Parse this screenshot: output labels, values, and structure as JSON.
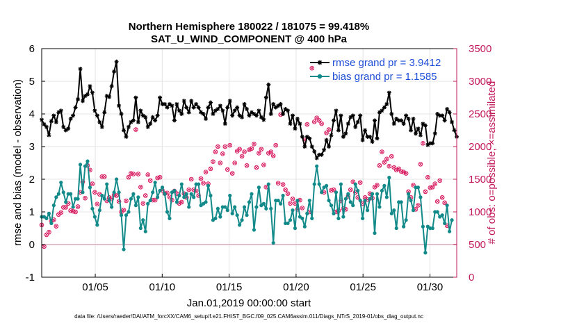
{
  "chart_data": {
    "type": "line",
    "title": "Northern Hemisphere 180022 / 181075 = 99.418%",
    "subtitle": "SAT_U_WIND_COMPONENT @ 400 hPa",
    "xlabel": "Jan.01,2019 00:00:00 start",
    "ylabel": "rmse and bias (model - observation)",
    "y2label": "# of obs: o=possible; ×=assimilated",
    "footer": "data file: /Users/raeder/DAI/ATM_forcXX/CAM6_setup/f.e21.FHIST_BGC.f09_025.CAM6assim.011/Diags_NTrS_2019-01/obs_diag_output.nc",
    "xlim": [
      1,
      32
    ],
    "ylim": [
      -1,
      6
    ],
    "y2lim": [
      0,
      3500
    ],
    "grid": true,
    "legend_position": "top-right",
    "x_ticks": [
      {
        "value": 5,
        "label": "01/05"
      },
      {
        "value": 10,
        "label": "01/10"
      },
      {
        "value": 15,
        "label": "01/15"
      },
      {
        "value": 20,
        "label": "01/20"
      },
      {
        "value": 25,
        "label": "01/25"
      },
      {
        "value": 30,
        "label": "01/30"
      }
    ],
    "y_ticks": [
      "-1",
      "0",
      "1",
      "2",
      "3",
      "4",
      "5",
      "6"
    ],
    "y2_ticks": [
      "0",
      "500",
      "1000",
      "1500",
      "2000",
      "2500",
      "3000",
      "3500"
    ],
    "reference_line": {
      "y": 0,
      "color": "#d8a8b8"
    },
    "colors": {
      "rmse": "#000000",
      "bias": "#138a8a",
      "obs": "#d81b60",
      "legend_text": "#1f4fd8",
      "right_axis": "#c2185b"
    },
    "series": [
      {
        "name": "rmse grand pr = 3.9412",
        "axis": "left",
        "marker": "star",
        "values": [
          3.82,
          3.68,
          3.6,
          3.35,
          3.78,
          3.95,
          3.75,
          4.05,
          4.1,
          3.6,
          3.5,
          3.55,
          3.85,
          3.95,
          4.2,
          4.45,
          5.38,
          4.4,
          4.55,
          4.6,
          4.85,
          4.65,
          4.1,
          3.95,
          3.75,
          3.6,
          4.05,
          4.55,
          4.52,
          4.85,
          5.3,
          5.6,
          4.25,
          4.0,
          3.5,
          3.3,
          3.6,
          3.75,
          3.8,
          4.5,
          3.75,
          4.1,
          3.95,
          3.9,
          3.6,
          3.7,
          3.9,
          3.8,
          3.95,
          4.5,
          4.3,
          4.3,
          4.2,
          4.3,
          4.25,
          3.8,
          4.3,
          4.1,
          4.0,
          4.4,
          4.2,
          4.05,
          4.4,
          4.2,
          4.3,
          4.2,
          4.05,
          4.0,
          3.85,
          4.2,
          4.35,
          4.0,
          4.1,
          4.15,
          4.25,
          4.1,
          3.7,
          4.2,
          4.4,
          3.95,
          4.1,
          4.2,
          3.95,
          3.9,
          4.3,
          4.15,
          3.95,
          4.05,
          4.0,
          3.95,
          4.1,
          3.9,
          3.82,
          4.5,
          4.9,
          4.0,
          4.3,
          4.2,
          4.25,
          4.3,
          4.0,
          4.15,
          4.1,
          3.7,
          3.95,
          3.55,
          3.85,
          3.7,
          3.3,
          3.0,
          3.3,
          3.25,
          3.0,
          2.85,
          2.65,
          2.75,
          2.75,
          2.9,
          3.2,
          3.0,
          3.35,
          3.8,
          4.1,
          3.5,
          3.95,
          3.3,
          3.4,
          3.7,
          3.9,
          3.95,
          3.6,
          3.75,
          3.95,
          3.2,
          3.5,
          3.3,
          3.3,
          3.15,
          3.8,
          3.25,
          4.05,
          4.1,
          4.2,
          4.3,
          4.65,
          4.0,
          3.7,
          3.85,
          3.8,
          3.8,
          3.7,
          3.95,
          3.85,
          3.5,
          3.85,
          3.4,
          3.55,
          3.35,
          3.7,
          3.65,
          3.05,
          3.1,
          3.1,
          3.4,
          4.0,
          3.95,
          3.95,
          3.8,
          4.15,
          4.05,
          3.75,
          3.5,
          3.3
        ]
      },
      {
        "name": "bias grand pr = 1.1585",
        "axis": "left",
        "marker": "dot",
        "values": [
          0.85,
          0.85,
          0.8,
          0.95,
          0.65,
          1.2,
          1.45,
          1.55,
          1.9,
          1.6,
          1.3,
          1.55,
          1.55,
          1.15,
          1.4,
          1.4,
          2.45,
          1.6,
          2.4,
          2.55,
          1.75,
          1.1,
          0.85,
          0.6,
          1.05,
          1.5,
          1.4,
          1.85,
          1.35,
          1.15,
          1.6,
          2.0,
          1.6,
          0.9,
          -0.15,
          0.9,
          1.0,
          1.4,
          1.55,
          1.2,
          1.45,
          0.5,
          0.75,
          0.4,
          1.25,
          1.35,
          1.6,
          1.9,
          1.45,
          1.65,
          1.75,
          1.55,
          1.0,
          0.8,
          1.6,
          1.65,
          1.3,
          1.5,
          1.85,
          1.45,
          1.55,
          1.15,
          1.55,
          1.45,
          1.85,
          1.85,
          1.2,
          1.25,
          1.3,
          1.8,
          1.5,
          0.75,
          0.8,
          1.1,
          0.85,
          1.15,
          1.15,
          1.05,
          1.5,
          0.95,
          1.15,
          0.9,
          0.6,
          0.75,
          1.15,
          0.9,
          1.3,
          1.55,
          0.45,
          1.15,
          1.75,
          1.2,
          1.25,
          1.1,
          1.85,
          1.1,
          0.05,
          1.35,
          1.35,
          1.25,
          1.5,
          0.65,
          0.65,
          0.75,
          1.05,
          0.5,
          1.35,
          0.85,
          0.8,
          0.55,
          0.95,
          1.35,
          0.8,
          1.85,
          2.4,
          1.85,
          1.6,
          1.75,
          1.8,
          1.35,
          1.2,
          0.95,
          1.6,
          0.8,
          1.85,
          0.85,
          1.4,
          1.55,
          1.3,
          1.2,
          1.85,
          1.65,
          1.35,
          0.8,
          1.35,
          1.05,
          1.4,
          1.55,
          0.35,
          1.55,
          1.15,
          1.65,
          1.8,
          1.45,
          2.05,
          0.95,
          1.05,
          0.5,
          1.3,
          1.3,
          0.55,
          0.75,
          1.55,
          1.35,
          1.05,
          1.75,
          1.75,
          1.45,
          0.55,
          -0.25,
          0.55,
          0.5,
          0.5,
          1.0,
          1.0,
          0.85,
          0.9,
          0.65,
          1.2,
          0.4,
          0.75
        ]
      },
      {
        "name": "# of obs possible",
        "axis": "right",
        "marker": "circle",
        "values": [
          800,
          470,
          650,
          690,
          860,
          880,
          780,
          960,
          990,
          1070,
          1070,
          1130,
          1020,
          1010,
          1000,
          1080,
          1300,
          1460,
          1210,
          1710,
          1640,
          1430,
          1300,
          1120,
          1270,
          1540,
          1540,
          1170,
          1220,
          1200,
          1260,
          1250,
          1160,
          1000,
          1030,
          1170,
          1530,
          1590,
          1580,
          2260,
          1580,
          1380,
          1130,
          1250,
          1570,
          1480,
          1180,
          1180,
          1520,
          1530,
          1330,
          1280,
          1290,
          1230,
          1180,
          1320,
          1280,
          1130,
          1150,
          1280,
          1220,
          1340,
          1500,
          1340,
          1320,
          1250,
          1510,
          1440,
          1610,
          1430,
          1660,
          1770,
          1920,
          2000,
          1750,
          1890,
          2000,
          1650,
          2020,
          1590,
          1750,
          1930,
          1960,
          1850,
          1920,
          1710,
          1950,
          1970,
          2040,
          1680,
          1900,
          1960,
          1720,
          1380,
          1900,
          1920,
          1860,
          2020,
          1440,
          2490,
          1420,
          1340,
          1280,
          1130,
          1200,
          1130,
          1040,
          1180,
          1060,
          2100,
          2340,
          1000,
          3200,
          2380,
          2440,
          2400,
          2350,
          1300,
          2210,
          2260,
          1330,
          1340,
          1000,
          1020,
          1170,
          1050,
          1040,
          1240,
          1340,
          1460,
          1300,
          1220,
          1450,
          1130,
          1220,
          1190,
          1280,
          1210,
          1380,
          1410,
          1710,
          1920,
          1760,
          1810,
          1700,
          1850,
          1680,
          1640,
          1660,
          1620,
          1610,
          1590,
          1310,
          1220,
          1410,
          1040,
          1100,
          1730,
          2050,
          1310,
          1530,
          1370,
          1380,
          1430,
          1160,
          1480,
          1220,
          1140,
          790
        ]
      },
      {
        "name": "# of obs assimilated",
        "axis": "right",
        "marker": "cross",
        "values": [
          800,
          470,
          650,
          690,
          860,
          880,
          780,
          960,
          990,
          1070,
          1070,
          1130,
          1020,
          1010,
          1000,
          1080,
          1300,
          1460,
          1210,
          1710,
          1640,
          1430,
          1300,
          1120,
          1270,
          1540,
          1540,
          1170,
          1220,
          1200,
          1260,
          1250,
          1160,
          1000,
          1030,
          1170,
          1530,
          1590,
          1580,
          2260,
          1580,
          1380,
          1130,
          1250,
          1570,
          1480,
          1180,
          1180,
          1520,
          1530,
          1330,
          1280,
          1290,
          1230,
          1180,
          1320,
          1280,
          1130,
          1150,
          1280,
          1220,
          1340,
          1500,
          1340,
          1320,
          1250,
          1510,
          1440,
          1610,
          1430,
          1660,
          1770,
          1920,
          2000,
          1750,
          1890,
          2000,
          1650,
          2020,
          1590,
          1750,
          1930,
          1960,
          1850,
          1920,
          1710,
          1950,
          1970,
          2040,
          1680,
          1900,
          1960,
          1720,
          1380,
          1900,
          1920,
          1860,
          2020,
          1440,
          2490,
          1420,
          1340,
          1280,
          1130,
          1200,
          1130,
          1040,
          1180,
          1060,
          2100,
          2340,
          1000,
          3200,
          2380,
          2440,
          2400,
          2350,
          1300,
          2210,
          2260,
          1330,
          1340,
          1000,
          1020,
          1170,
          1050,
          1040,
          1240,
          1340,
          1460,
          1300,
          1220,
          1450,
          1130,
          1220,
          1190,
          1280,
          1210,
          1380,
          1410,
          1710,
          1920,
          1760,
          1810,
          1700,
          1850,
          1680,
          1640,
          1660,
          1620,
          1610,
          1590,
          1310,
          1220,
          1410,
          1040,
          1100,
          1730,
          2050,
          1310,
          1530,
          1370,
          1380,
          1430,
          1160,
          1480,
          1220,
          1140,
          790
        ]
      }
    ]
  }
}
